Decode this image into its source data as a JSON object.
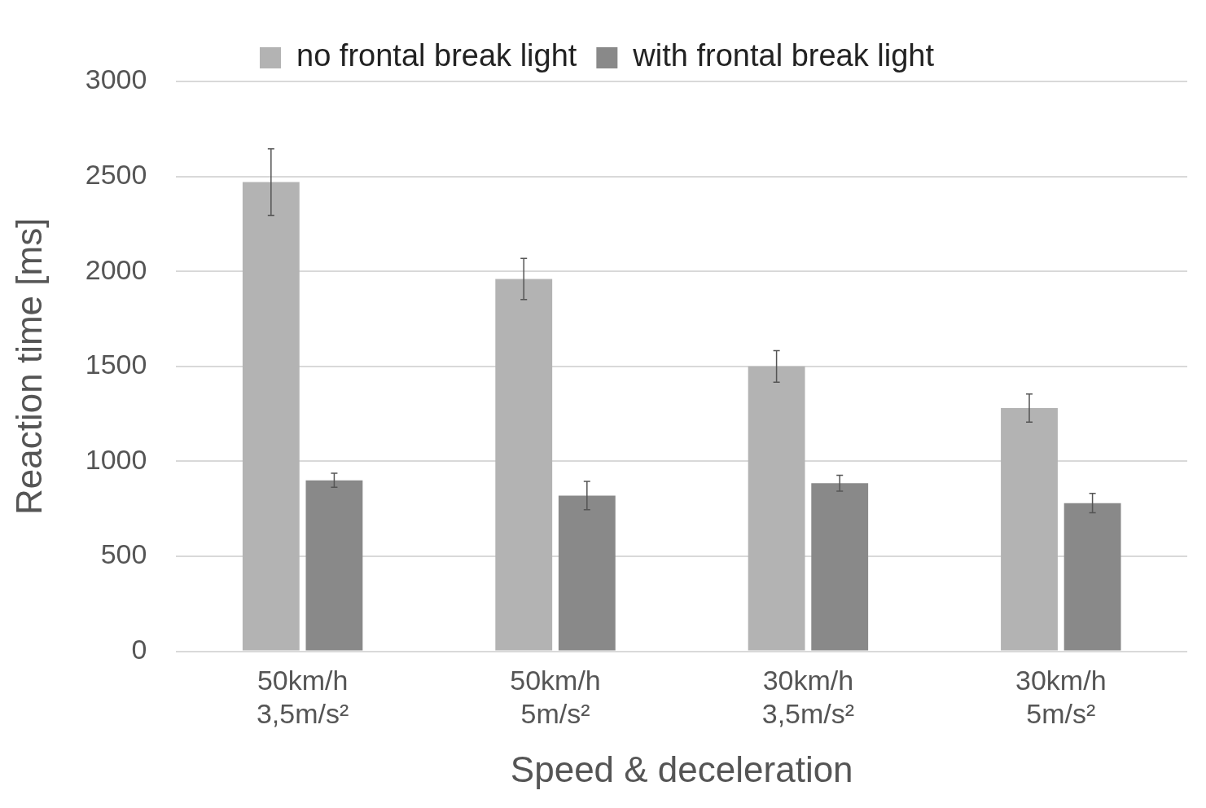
{
  "chart_data": {
    "type": "bar",
    "xlabel": "Speed & deceleration",
    "ylabel": "Reaction time [ms]",
    "categories": [
      "50km/h\n3,5m/s²",
      "50km/h\n5m/s²",
      "30km/h\n3,5m/s²",
      "30km/h\n5m/s²"
    ],
    "series": [
      {
        "name": "no frontal break light",
        "color": "#b3b3b3",
        "values": [
          2470,
          1960,
          1500,
          1280
        ],
        "errors": [
          175,
          108,
          83,
          74
        ]
      },
      {
        "name": "with frontal break light",
        "color": "#898989",
        "values": [
          900,
          820,
          885,
          780
        ],
        "errors": [
          37,
          75,
          42,
          51
        ]
      }
    ],
    "ylim": [
      0,
      3000
    ],
    "yticks": [
      0,
      500,
      1000,
      1500,
      2000,
      2500,
      3000
    ],
    "grid": "y",
    "legend": "top"
  }
}
